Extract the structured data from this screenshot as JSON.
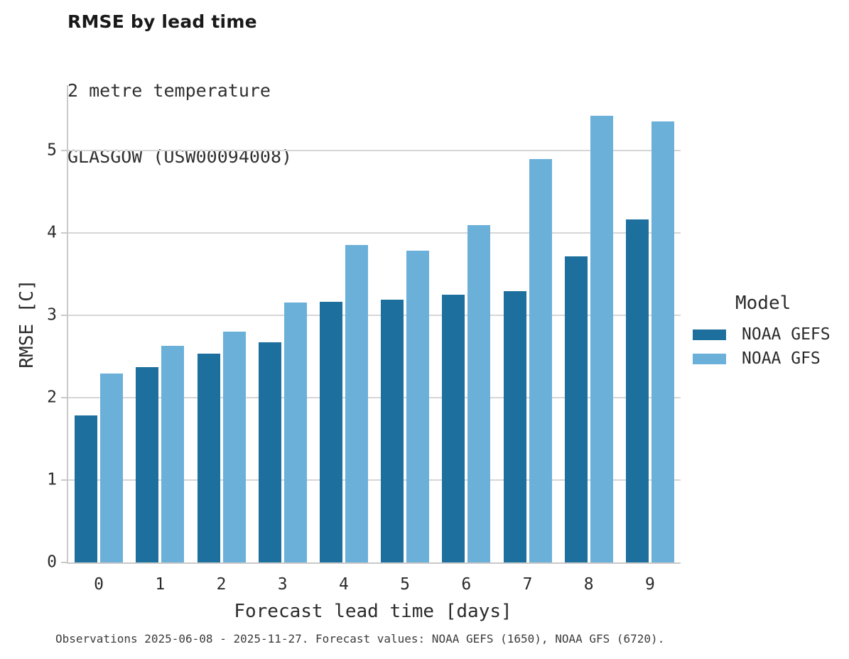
{
  "chart_data": {
    "type": "bar",
    "title": "RMSE by lead time",
    "subtitle": [
      "2 metre temperature",
      "GLASGOW (USW00094008)"
    ],
    "xlabel": "Forecast lead time [days]",
    "ylabel": "RMSE [C]",
    "categories": [
      "0",
      "1",
      "2",
      "3",
      "4",
      "5",
      "6",
      "7",
      "8",
      "9"
    ],
    "series": [
      {
        "name": "NOAA GEFS",
        "color": "#1d6f9e",
        "values": [
          1.78,
          2.37,
          2.53,
          2.67,
          3.16,
          3.19,
          3.25,
          3.29,
          3.71,
          4.16
        ]
      },
      {
        "name": "NOAA GFS",
        "color": "#6ab0d8",
        "values": [
          2.29,
          2.63,
          2.8,
          3.15,
          3.85,
          3.78,
          4.09,
          4.89,
          5.42,
          5.35
        ]
      }
    ],
    "ylim": [
      0,
      5.79
    ],
    "yticks": [
      0,
      1,
      2,
      3,
      4,
      5
    ],
    "grid": "horizontal",
    "legend_title": "Model",
    "legend_position": "right",
    "caption": "Observations 2025-06-08 - 2025-11-27. Forecast values: NOAA GEFS (1650), NOAA GFS (6720)."
  }
}
